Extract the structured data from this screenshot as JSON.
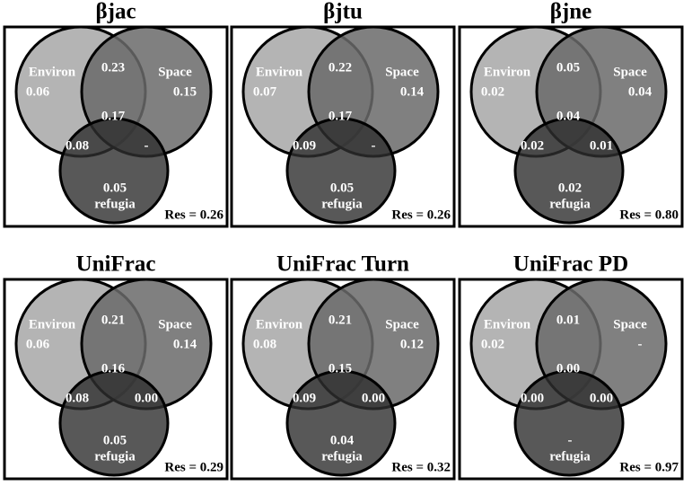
{
  "panels": [
    {
      "title": "βjac",
      "environ_name": "Environ",
      "environ": "0.06",
      "space_name": "Space",
      "space": "0.15",
      "environ_space": "0.23",
      "all": "0.17",
      "environ_refugia": "0.08",
      "space_refugia": "-",
      "refugia": "0.05",
      "refugia_name": "refugia",
      "residual": "Res = 0.26"
    },
    {
      "title": "βjtu",
      "environ_name": "Environ",
      "environ": "0.07",
      "space_name": "Space",
      "space": "0.14",
      "environ_space": "0.22",
      "all": "0.17",
      "environ_refugia": "0.09",
      "space_refugia": "-",
      "refugia": "0.05",
      "refugia_name": "refugia",
      "residual": "Res = 0.26"
    },
    {
      "title": "βjne",
      "environ_name": "Environ",
      "environ": "0.02",
      "space_name": "Space",
      "space": "0.04",
      "environ_space": "0.05",
      "all": "0.04",
      "environ_refugia": "0.02",
      "space_refugia": "0.01",
      "refugia": "0.02",
      "refugia_name": "refugia",
      "residual": "Res = 0.80"
    },
    {
      "title": "UniFrac",
      "environ_name": "Environ",
      "environ": "0.06",
      "space_name": "Space",
      "space": "0.14",
      "environ_space": "0.21",
      "all": "0.16",
      "environ_refugia": "0.08",
      "space_refugia": "0.00",
      "refugia": "0.05",
      "refugia_name": "refugia",
      "residual": "Res = 0.29"
    },
    {
      "title": "UniFrac Turn",
      "environ_name": "Environ",
      "environ": "0.08",
      "space_name": "Space",
      "space": "0.12",
      "environ_space": "0.21",
      "all": "0.15",
      "environ_refugia": "0.09",
      "space_refugia": "0.00",
      "refugia": "0.04",
      "refugia_name": "refugia",
      "residual": "Res = 0.32"
    },
    {
      "title": "UniFrac PD",
      "environ_name": "Environ",
      "environ": "0.02",
      "space_name": "Space",
      "space": "-",
      "environ_space": "0.01",
      "all": "0.00",
      "environ_refugia": "0.00",
      "space_refugia": "0.00",
      "refugia": "-",
      "refugia_name": "refugia",
      "residual": "Res = 0.97"
    }
  ]
}
